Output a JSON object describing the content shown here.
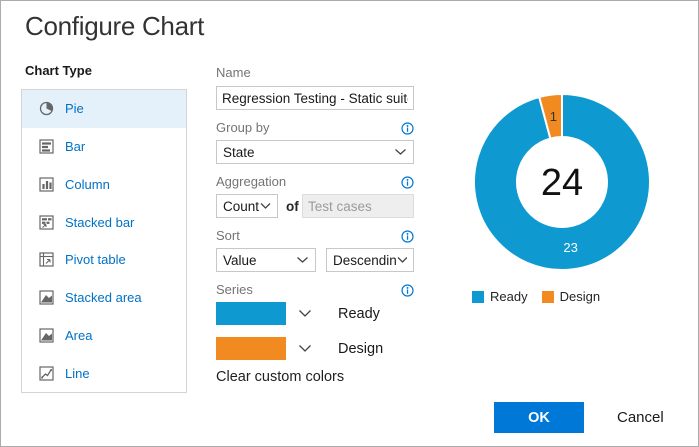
{
  "dialog": {
    "title": "Configure Chart"
  },
  "chart_type": {
    "label": "Chart Type",
    "items": [
      {
        "label": "Pie",
        "icon": "pie-icon",
        "selected": true
      },
      {
        "label": "Bar",
        "icon": "bar-icon",
        "selected": false
      },
      {
        "label": "Column",
        "icon": "column-icon",
        "selected": false
      },
      {
        "label": "Stacked bar",
        "icon": "stacked-bar-icon",
        "selected": false
      },
      {
        "label": "Pivot table",
        "icon": "pivot-table-icon",
        "selected": false
      },
      {
        "label": "Stacked area",
        "icon": "stacked-area-icon",
        "selected": false
      },
      {
        "label": "Area",
        "icon": "area-icon",
        "selected": false
      },
      {
        "label": "Line",
        "icon": "line-icon",
        "selected": false
      }
    ]
  },
  "form": {
    "name": {
      "label": "Name",
      "value": "Regression Testing - Static suite - Ch"
    },
    "group_by": {
      "label": "Group by",
      "value": "State"
    },
    "aggregation": {
      "label": "Aggregation",
      "function": "Count",
      "of_label": "of",
      "field": "Test cases",
      "field_disabled": true
    },
    "sort": {
      "label": "Sort",
      "by": "Value",
      "direction": "Descending"
    },
    "series": {
      "label": "Series",
      "items": [
        {
          "name": "Ready",
          "color": "#0e9ad0"
        },
        {
          "name": "Design",
          "color": "#f18a20"
        }
      ]
    },
    "clear_colors_label": "Clear custom colors"
  },
  "chart_data": {
    "type": "pie",
    "subtype": "donut",
    "categories": [
      "Ready",
      "Design"
    ],
    "values": [
      23,
      1
    ],
    "colors": [
      "#0e9ad0",
      "#f18a20"
    ],
    "value_label_colors": [
      "#ffffff",
      "#333333"
    ],
    "center_total": "24",
    "legend": {
      "position": "bottom",
      "entries": [
        "Ready",
        "Design"
      ]
    }
  },
  "footer": {
    "ok_label": "OK",
    "cancel_label": "Cancel",
    "ok_color": "#0078d7"
  }
}
